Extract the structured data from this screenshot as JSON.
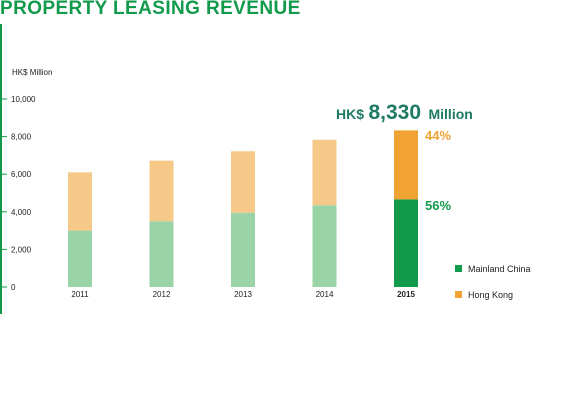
{
  "title": "PROPERTY LEASING REVENUE",
  "colors": {
    "brand_green": "#129a4c",
    "mainland_light": "#99d3a6",
    "hongkong_light": "#f6c989",
    "mainland_dark": "#109a4a",
    "hongkong_dark": "#f0a232"
  },
  "chart_data": {
    "type": "bar",
    "stacked": true,
    "title": "PROPERTY LEASING REVENUE",
    "ylabel": "HK$ Million",
    "xlabel": "",
    "ylim": [
      0,
      10000
    ],
    "yticks": [
      0,
      2000,
      4000,
      6000,
      8000,
      10000
    ],
    "ytick_labels": [
      "0",
      "2,000",
      "4,000",
      "6,000",
      "8,000",
      "10,000"
    ],
    "categories": [
      "2011",
      "2012",
      "2013",
      "2014",
      "2015"
    ],
    "highlight_category": "2015",
    "series": [
      {
        "name": "Mainland China",
        "values": [
          3000,
          3500,
          3950,
          4350,
          4660
        ]
      },
      {
        "name": "Hong Kong",
        "values": [
          3100,
          3220,
          3270,
          3480,
          3670
        ]
      }
    ],
    "legend": {
      "position": "bottom-right",
      "entries": [
        "Mainland China",
        "Hong Kong"
      ]
    },
    "grid": false,
    "annotations": {
      "total_prefix": "HK$",
      "total_value": "8,330",
      "total_suffix": "Million",
      "hong_kong_share": "44%",
      "mainland_share": "56%"
    }
  }
}
